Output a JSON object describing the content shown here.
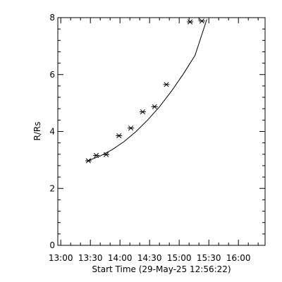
{
  "chart_data": {
    "type": "scatter",
    "title": "",
    "xlabel": "Start Time (29-May-25 12:56:22)",
    "ylabel": "R/Rs",
    "x_tick_labels": [
      "13:00",
      "13:30",
      "14:00",
      "14:30",
      "15:00",
      "15:30",
      "16:00"
    ],
    "x_tick_values_min": [
      0,
      30,
      60,
      90,
      120,
      150,
      180
    ],
    "y_ticks": [
      0,
      2,
      4,
      6,
      8
    ],
    "xlim_min": [
      -3,
      207
    ],
    "ylim": [
      0,
      8
    ],
    "grid": false,
    "legend": "none",
    "series": [
      {
        "marker": "asterisk",
        "x_time": [
          "13:28",
          "13:36",
          "13:46",
          "13:59",
          "14:11",
          "14:23",
          "14:35",
          "14:47",
          "15:11",
          "15:23"
        ],
        "y": [
          2.97,
          3.16,
          3.19,
          3.85,
          4.12,
          4.69,
          4.87,
          5.65,
          7.85,
          7.88
        ]
      }
    ],
    "fit_curve": {
      "x_time": [
        "13:28",
        "13:40",
        "13:52",
        "14:04",
        "14:16",
        "14:28",
        "14:40",
        "14:52",
        "15:04",
        "15:16",
        "15:28"
      ],
      "y": [
        2.98,
        3.14,
        3.36,
        3.64,
        3.99,
        4.4,
        4.87,
        5.41,
        6.01,
        6.67,
        7.94
      ]
    }
  }
}
